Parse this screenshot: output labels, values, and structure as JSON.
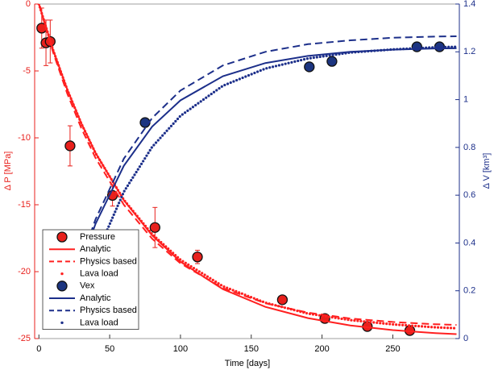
{
  "chart_data": {
    "type": "line",
    "xlabel": "Time [days]",
    "ylabel": "Δ P [MPa]",
    "y2label": "Δ V [km³]",
    "xlim": [
      -3,
      297
    ],
    "xticks": [
      0,
      50,
      100,
      150,
      200,
      250
    ],
    "ylim": [
      -25,
      0
    ],
    "yticks": [
      0,
      -5,
      -10,
      -15,
      -20,
      -25
    ],
    "y2lim": [
      0,
      1.4
    ],
    "y2ticks": [
      0,
      0.2,
      0.4,
      0.6,
      0.8,
      1,
      1.2,
      1.4
    ],
    "ycolor": "#e8201c",
    "y2color": "#1c2f8a",
    "legend": "lower-left",
    "series": [
      {
        "name": "Pressure",
        "style": "marker",
        "color": "#e8201c",
        "x": [
          2,
          5,
          8,
          22,
          52,
          82,
          112,
          172,
          202,
          232,
          262
        ],
        "values": [
          -1.8,
          -2.9,
          -2.8,
          -10.6,
          -14.3,
          -16.7,
          -18.9,
          -22.1,
          -23.5,
          -24.1,
          -24.4
        ],
        "errors": [
          1.5,
          1.7,
          1.6,
          1.5,
          0.8,
          1.5,
          0.5,
          0.3,
          0.3,
          0.3,
          0.3
        ]
      },
      {
        "name": "Analytic",
        "style": "solid",
        "color": "#ff2020",
        "x": [
          0,
          10,
          20,
          30,
          40,
          60,
          80,
          100,
          130,
          160,
          190,
          220,
          250,
          280,
          295
        ],
        "values": [
          0,
          -3.42,
          -6.37,
          -8.92,
          -11.12,
          -14.66,
          -17.29,
          -19.26,
          -21.31,
          -22.63,
          -23.47,
          -24.02,
          -24.37,
          -24.59,
          -24.67
        ]
      },
      {
        "name": "Physics based",
        "style": "dashed",
        "color": "#ff2020",
        "x": [
          0,
          10,
          20,
          30,
          40,
          60,
          80,
          100,
          130,
          160,
          190,
          220,
          250,
          280,
          295
        ],
        "values": [
          0,
          -3.6,
          -6.68,
          -9.29,
          -11.5,
          -15.0,
          -17.54,
          -19.38,
          -21.23,
          -22.36,
          -23.06,
          -23.5,
          -23.76,
          -23.93,
          -23.98
        ]
      },
      {
        "name": "Lava load",
        "style": "dotted",
        "color": "#ff2020",
        "x": [
          0,
          10,
          20,
          30,
          40,
          60,
          80,
          100,
          130,
          160,
          190,
          220,
          250,
          280,
          295
        ],
        "values": [
          0,
          -3.43,
          -6.39,
          -8.94,
          -11.14,
          -14.63,
          -17.2,
          -19.11,
          -21.09,
          -22.32,
          -23.13,
          -23.62,
          -23.94,
          -24.16,
          -24.23
        ]
      },
      {
        "name": "Vex",
        "style": "marker",
        "color": "#1c3580",
        "axis": "y2",
        "x": [
          75,
          191,
          207,
          267,
          283
        ],
        "values": [
          0.904,
          1.137,
          1.16,
          1.221,
          1.221
        ]
      },
      {
        "name": "Analytic",
        "style": "solid",
        "color": "#1c2f8a",
        "axis": "y2",
        "x": [
          0,
          10,
          20,
          30,
          40,
          60,
          80,
          100,
          130,
          160,
          190,
          220,
          250,
          280,
          295
        ],
        "values": [
          null,
          null,
          0.116,
          0.316,
          0.48,
          0.723,
          0.887,
          0.997,
          1.098,
          1.153,
          1.183,
          1.2,
          1.209,
          1.214,
          1.215
        ]
      },
      {
        "name": "Physics based",
        "style": "dashed",
        "color": "#1c2f8a",
        "axis": "y2",
        "x": [
          0,
          10,
          20,
          30,
          40,
          60,
          80,
          100,
          130,
          160,
          190,
          220,
          250,
          280,
          295
        ],
        "values": [
          null,
          null,
          0.121,
          0.329,
          0.499,
          0.753,
          0.923,
          1.038,
          1.143,
          1.2,
          1.232,
          1.248,
          1.259,
          1.264,
          1.265
        ]
      },
      {
        "name": "Lava load",
        "style": "dotted",
        "color": "#1c2f8a",
        "axis": "y2",
        "x": [
          0,
          10,
          20,
          30,
          40,
          60,
          80,
          100,
          130,
          160,
          190,
          220,
          250,
          280,
          295
        ],
        "values": [
          null,
          null,
          null,
          0.166,
          0.343,
          0.614,
          0.802,
          0.932,
          1.058,
          1.13,
          1.172,
          1.197,
          1.21,
          1.219,
          1.221
        ]
      }
    ]
  }
}
